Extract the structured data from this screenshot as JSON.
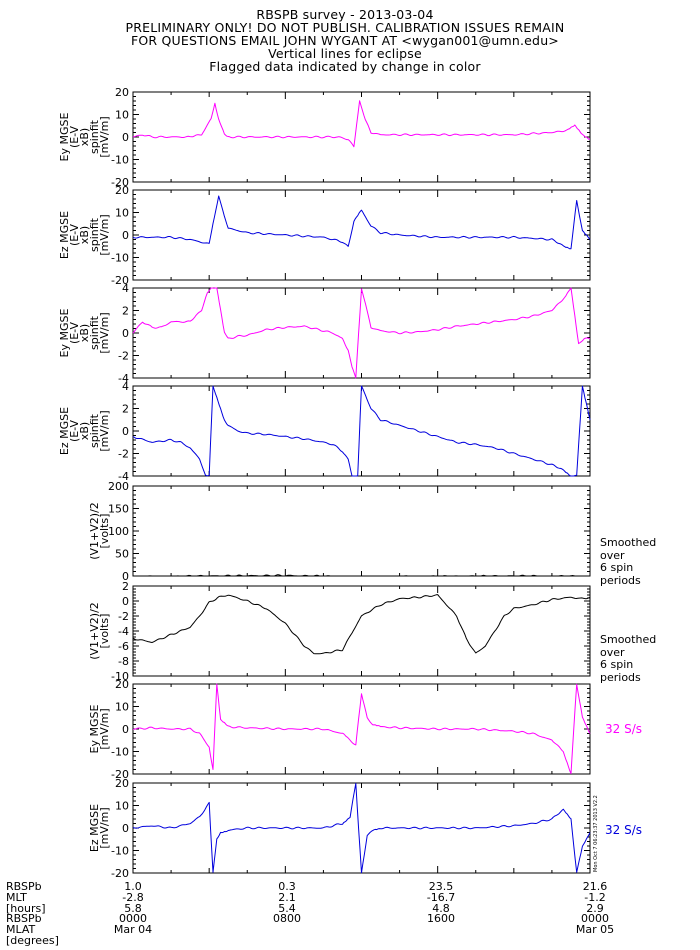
{
  "title_lines": [
    "RBSPB survey - 2013-03-04",
    "PRELIMINARY ONLY! DO NOT PUBLISH. CALIBRATION ISSUES REMAIN",
    "FOR QUESTIONS EMAIL JOHN WYGANT AT <wygan001@umn.edu>",
    "Vertical lines for eclipse",
    "Flagged data indicated by change in color"
  ],
  "colors": {
    "magenta": "#ff00ff",
    "blue": "#0000dd",
    "black": "#000000"
  },
  "side_notes": {
    "smoothed_1": "Smoothed\nover\n6 spin\nperiods",
    "smoothed_2": "Smoothed\nover\n6 spin\nperiods",
    "rate_1": "32 S/s",
    "rate_2": "32 S/s"
  },
  "stamp": "Mon Oct 7 06:23:37 2013 V2.2",
  "bottom_row_labels": [
    "RBSPb",
    "MLT",
    "[hours]",
    "RBSPb",
    "MLAT",
    "[degrees]"
  ],
  "bottom_ticks": [
    {
      "lines": [
        "1.0",
        "-2.8",
        "5.8",
        "0000",
        "Mar 04"
      ]
    },
    {
      "lines": [
        "0.3",
        "2.1",
        "5.4",
        "0800",
        ""
      ]
    },
    {
      "lines": [
        "23.5",
        "-16.7",
        "4.8",
        "1600",
        ""
      ]
    },
    {
      "lines": [
        "21.6",
        "-1.2",
        "2.9",
        "0000",
        "Mar 05"
      ]
    }
  ],
  "chart_data": [
    {
      "type": "line",
      "ylabel": [
        "Ey MGSE",
        "(E-V",
        "sc",
        "xB)",
        "spinfit",
        "[mV/m]"
      ],
      "color": "magenta",
      "ylim": [
        -20,
        20
      ],
      "yticks": [
        -20,
        -10,
        0,
        10,
        20
      ],
      "xlim": [
        0,
        24
      ],
      "series": [
        {
          "x": [
            0,
            0.5,
            1,
            2,
            3,
            3.6,
            4.1,
            4.3,
            4.5,
            4.8,
            5,
            6,
            7,
            8,
            9,
            10,
            10.8,
            11.3,
            11.6,
            11.9,
            12.2,
            12.5,
            13,
            14,
            15,
            16,
            17,
            18,
            19,
            20,
            21,
            22,
            22.8,
            23.2,
            23.6,
            24
          ],
          "y": [
            0,
            1,
            0,
            0,
            0,
            1,
            8,
            15,
            8,
            1,
            0,
            0,
            0,
            0,
            0,
            0,
            0,
            -1,
            -4,
            16,
            8,
            2,
            1,
            1,
            1,
            1,
            1,
            1,
            1,
            1,
            1.5,
            2,
            3,
            5,
            1,
            -1
          ]
        }
      ]
    },
    {
      "type": "line",
      "ylabel": [
        "Ez MGSE",
        "(E-V",
        "sc",
        "xB)",
        "spinfit",
        "[mV/m]"
      ],
      "color": "blue",
      "ylim": [
        -20,
        20
      ],
      "yticks": [
        -20,
        -10,
        0,
        10,
        20
      ],
      "xlim": [
        0,
        24
      ],
      "series": [
        {
          "x": [
            0,
            1,
            2,
            3,
            3.5,
            4,
            4.2,
            4.5,
            5,
            6,
            8,
            10,
            11,
            11.3,
            11.6,
            12,
            12.5,
            13,
            14,
            16,
            18,
            20,
            22,
            22.6,
            23,
            23.3,
            23.6,
            24
          ],
          "y": [
            -1,
            -1,
            -1,
            -2,
            -3,
            -4,
            5,
            17,
            3,
            1,
            0,
            -1,
            -3,
            -5,
            6,
            11,
            4,
            1,
            0,
            -1,
            -1,
            -1,
            -2,
            -5,
            -6,
            15,
            2,
            -2
          ]
        }
      ]
    },
    {
      "type": "line",
      "ylabel": [
        "Ey MGSE",
        "(E-V",
        "sc",
        "xB)",
        "spinfit",
        "[mV/m]"
      ],
      "color": "magenta",
      "ylim": [
        -4,
        4
      ],
      "yticks": [
        -4,
        -2,
        0,
        2,
        4
      ],
      "xlim": [
        0,
        24
      ],
      "series": [
        {
          "x": [
            0,
            0.5,
            1,
            1.5,
            2,
            3,
            3.6,
            3.9,
            4.1,
            4.4,
            4.8,
            5,
            5.5,
            6,
            7,
            8,
            9,
            10,
            10.5,
            11,
            11.3,
            11.5,
            11.7,
            12,
            12.5,
            13,
            14,
            15,
            16,
            17,
            18,
            19,
            20,
            21,
            22,
            22.6,
            23,
            23.4,
            23.7,
            24
          ],
          "y": [
            0,
            1,
            0.5,
            0.5,
            1,
            1,
            2,
            3.5,
            4,
            4,
            0,
            -0.5,
            -0.3,
            -0.2,
            0.3,
            0.5,
            0.6,
            0.2,
            0,
            -0.5,
            -1.5,
            -3,
            -4,
            4,
            0.5,
            0.2,
            0,
            0.1,
            0.3,
            0.6,
            0.8,
            1.0,
            1.2,
            1.5,
            2,
            3,
            4,
            -1,
            -0.5,
            -0.5
          ]
        }
      ]
    },
    {
      "type": "line",
      "ylabel": [
        "Ez MGSE",
        "(E-V",
        "sc",
        "xB)",
        "spinfit",
        "[mV/m]"
      ],
      "color": "blue",
      "ylim": [
        -4,
        4
      ],
      "yticks": [
        -4,
        -2,
        0,
        2,
        4
      ],
      "xlim": [
        0,
        24
      ],
      "series": [
        {
          "x": [
            0,
            1,
            2,
            2.5,
            3,
            3.5,
            3.8,
            4,
            4.2,
            4.4,
            4.6,
            4.8,
            5,
            5.5,
            6,
            7,
            8,
            9,
            10,
            10.5,
            11,
            11.3,
            11.5,
            11.8,
            12,
            12.5,
            13,
            14,
            15,
            16,
            17,
            18,
            19,
            20,
            21,
            22,
            22.6,
            23,
            23.3,
            23.6,
            24
          ],
          "y": [
            -0.5,
            -1,
            -0.8,
            -1,
            -1.5,
            -2.5,
            -4,
            -4,
            4,
            3,
            2,
            1,
            0.5,
            0,
            -0.2,
            -0.3,
            -0.5,
            -0.7,
            -1,
            -1.2,
            -1.8,
            -2.5,
            -4,
            -4,
            4,
            2,
            1,
            0.5,
            0,
            -0.5,
            -1,
            -1.2,
            -1.5,
            -2,
            -2.5,
            -3,
            -3.5,
            -4,
            -4,
            4,
            1
          ]
        }
      ]
    },
    {
      "type": "line",
      "ylabel": [
        "(V1+V2)/2",
        "[volts]"
      ],
      "color": "black",
      "ylim": [
        0,
        200
      ],
      "yticks": [
        0,
        50,
        100,
        150,
        200
      ],
      "xlim": [
        0,
        24
      ],
      "series": [
        {
          "x": [
            0,
            4,
            8,
            12,
            16,
            20,
            24
          ],
          "y": [
            -2,
            0,
            1,
            -2,
            -1,
            0,
            -1
          ]
        }
      ]
    },
    {
      "type": "line",
      "ylabel": [
        "(V1+V2)/2",
        "[volts]"
      ],
      "color": "black",
      "ylim": [
        -10,
        2
      ],
      "yticks": [
        -10,
        -8,
        -6,
        -4,
        -2,
        0,
        2
      ],
      "xlim": [
        0,
        24
      ],
      "series": [
        {
          "x": [
            0,
            1,
            2,
            3,
            3.5,
            4,
            4.5,
            5,
            6,
            7,
            8,
            9,
            9.5,
            10,
            11,
            12,
            13,
            14,
            15,
            16,
            17,
            17.5,
            18,
            18.5,
            19,
            19.5,
            20,
            21,
            22,
            23,
            23.5,
            24
          ],
          "y": [
            -5,
            -5.5,
            -4.5,
            -3.5,
            -2,
            -0.2,
            0.5,
            0.8,
            0,
            -1,
            -3,
            -6,
            -7,
            -7,
            -6.5,
            -2,
            -0.5,
            0.3,
            0.5,
            0.8,
            -2,
            -5,
            -7,
            -6,
            -4,
            -2,
            -1,
            -0.5,
            0.2,
            0.5,
            0.3,
            0.5
          ]
        }
      ]
    },
    {
      "type": "line",
      "ylabel": [
        "Ey MGSE",
        "[mV/m]"
      ],
      "color": "magenta",
      "ylim": [
        -20,
        20
      ],
      "yticks": [
        -20,
        -10,
        0,
        10,
        20
      ],
      "xlim": [
        0,
        24
      ],
      "series": [
        {
          "x": [
            0,
            1,
            2,
            3,
            3.5,
            4,
            4.2,
            4.4,
            4.6,
            5,
            6,
            8,
            10,
            11,
            11.4,
            11.7,
            12,
            12.3,
            12.6,
            13,
            14,
            16,
            18,
            20,
            21,
            22,
            22.6,
            23,
            23.3,
            23.6,
            24
          ],
          "y": [
            0,
            0.5,
            0,
            0,
            -2,
            -8,
            -18,
            20,
            4,
            1,
            0.5,
            0,
            0,
            -2,
            -5,
            -7,
            16,
            5,
            2,
            1,
            0.5,
            0,
            0,
            -1,
            -2,
            -5,
            -10,
            -20,
            20,
            5,
            -2
          ]
        }
      ]
    },
    {
      "type": "line",
      "ylabel": [
        "Ez MGSE",
        "[mV/m]"
      ],
      "color": "blue",
      "ylim": [
        -20,
        20
      ],
      "yticks": [
        -20,
        -10,
        0,
        10,
        20
      ],
      "xlim": [
        0,
        24
      ],
      "series": [
        {
          "x": [
            0,
            1,
            2,
            3,
            3.5,
            4,
            4.2,
            4.4,
            4.6,
            5,
            6,
            8,
            10,
            11,
            11.4,
            11.7,
            12,
            12.3,
            12.6,
            13,
            14,
            16,
            18,
            20,
            21,
            22,
            22.6,
            23,
            23.3,
            23.6,
            24
          ],
          "y": [
            0,
            1,
            0,
            2,
            5,
            11,
            -20,
            -5,
            -2,
            -1,
            0,
            0,
            0,
            2,
            5,
            20,
            -20,
            -3,
            -1,
            0,
            0,
            0,
            0,
            1,
            2,
            4,
            8,
            4,
            -20,
            -8,
            -2
          ]
        }
      ]
    }
  ]
}
